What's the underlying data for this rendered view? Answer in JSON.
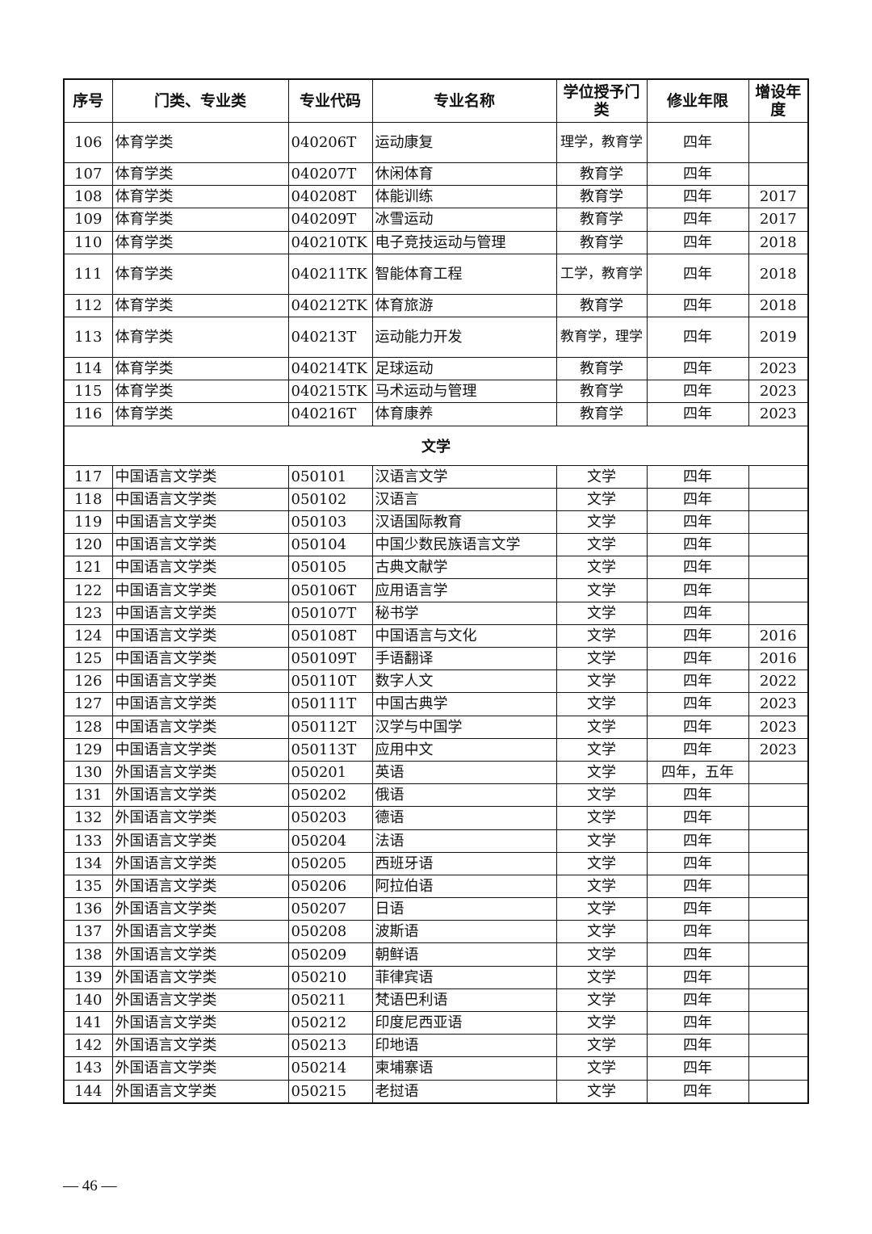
{
  "headers": [
    "序号",
    "门类、专业类",
    "专业代码",
    "专业名称",
    "学位授予门类",
    "修业年限",
    "增设年度"
  ],
  "rows_a": [
    [
      "106",
      "体育学类",
      "040206T",
      "运动康复",
      "理学，教育学",
      "四年",
      ""
    ],
    [
      "107",
      "体育学类",
      "040207T",
      "休闲体育",
      "教育学",
      "四年",
      ""
    ],
    [
      "108",
      "体育学类",
      "040208T",
      "体能训练",
      "教育学",
      "四年",
      "2017"
    ],
    [
      "109",
      "体育学类",
      "040209T",
      "冰雪运动",
      "教育学",
      "四年",
      "2017"
    ],
    [
      "110",
      "体育学类",
      "040210TK",
      "电子竞技运动与管理",
      "教育学",
      "四年",
      "2018"
    ],
    [
      "111",
      "体育学类",
      "040211TK",
      "智能体育工程",
      "工学，教育学",
      "四年",
      "2018"
    ],
    [
      "112",
      "体育学类",
      "040212TK",
      "体育旅游",
      "教育学",
      "四年",
      "2018"
    ],
    [
      "113",
      "体育学类",
      "040213T",
      "运动能力开发",
      "教育学，理学",
      "四年",
      "2019"
    ],
    [
      "114",
      "体育学类",
      "040214TK",
      "足球运动",
      "教育学",
      "四年",
      "2023"
    ],
    [
      "115",
      "体育学类",
      "040215TK",
      "马术运动与管理",
      "教育学",
      "四年",
      "2023"
    ],
    [
      "116",
      "体育学类",
      "040216T",
      "体育康养",
      "教育学",
      "四年",
      "2023"
    ]
  ],
  "section": "文学",
  "rows_b": [
    [
      "117",
      "中国语言文学类",
      "050101",
      "汉语言文学",
      "文学",
      "四年",
      ""
    ],
    [
      "118",
      "中国语言文学类",
      "050102",
      "汉语言",
      "文学",
      "四年",
      ""
    ],
    [
      "119",
      "中国语言文学类",
      "050103",
      "汉语国际教育",
      "文学",
      "四年",
      ""
    ],
    [
      "120",
      "中国语言文学类",
      "050104",
      "中国少数民族语言文学",
      "文学",
      "四年",
      ""
    ],
    [
      "121",
      "中国语言文学类",
      "050105",
      "古典文献学",
      "文学",
      "四年",
      ""
    ],
    [
      "122",
      "中国语言文学类",
      "050106T",
      "应用语言学",
      "文学",
      "四年",
      ""
    ],
    [
      "123",
      "中国语言文学类",
      "050107T",
      "秘书学",
      "文学",
      "四年",
      ""
    ],
    [
      "124",
      "中国语言文学类",
      "050108T",
      "中国语言与文化",
      "文学",
      "四年",
      "2016"
    ],
    [
      "125",
      "中国语言文学类",
      "050109T",
      "手语翻译",
      "文学",
      "四年",
      "2016"
    ],
    [
      "126",
      "中国语言文学类",
      "050110T",
      "数字人文",
      "文学",
      "四年",
      "2022"
    ],
    [
      "127",
      "中国语言文学类",
      "050111T",
      "中国古典学",
      "文学",
      "四年",
      "2023"
    ],
    [
      "128",
      "中国语言文学类",
      "050112T",
      "汉学与中国学",
      "文学",
      "四年",
      "2023"
    ],
    [
      "129",
      "中国语言文学类",
      "050113T",
      "应用中文",
      "文学",
      "四年",
      "2023"
    ],
    [
      "130",
      "外国语言文学类",
      "050201",
      "英语",
      "文学",
      "四年，五年",
      ""
    ],
    [
      "131",
      "外国语言文学类",
      "050202",
      "俄语",
      "文学",
      "四年",
      ""
    ],
    [
      "132",
      "外国语言文学类",
      "050203",
      "德语",
      "文学",
      "四年",
      ""
    ],
    [
      "133",
      "外国语言文学类",
      "050204",
      "法语",
      "文学",
      "四年",
      ""
    ],
    [
      "134",
      "外国语言文学类",
      "050205",
      "西班牙语",
      "文学",
      "四年",
      ""
    ],
    [
      "135",
      "外国语言文学类",
      "050206",
      "阿拉伯语",
      "文学",
      "四年",
      ""
    ],
    [
      "136",
      "外国语言文学类",
      "050207",
      "日语",
      "文学",
      "四年",
      ""
    ],
    [
      "137",
      "外国语言文学类",
      "050208",
      "波斯语",
      "文学",
      "四年",
      ""
    ],
    [
      "138",
      "外国语言文学类",
      "050209",
      "朝鲜语",
      "文学",
      "四年",
      ""
    ],
    [
      "139",
      "外国语言文学类",
      "050210",
      "菲律宾语",
      "文学",
      "四年",
      ""
    ],
    [
      "140",
      "外国语言文学类",
      "050211",
      "梵语巴利语",
      "文学",
      "四年",
      ""
    ],
    [
      "141",
      "外国语言文学类",
      "050212",
      "印度尼西亚语",
      "文学",
      "四年",
      ""
    ],
    [
      "142",
      "外国语言文学类",
      "050213",
      "印地语",
      "文学",
      "四年",
      ""
    ],
    [
      "143",
      "外国语言文学类",
      "050214",
      "柬埔寨语",
      "文学",
      "四年",
      ""
    ],
    [
      "144",
      "外国语言文学类",
      "050215",
      "老挝语",
      "文学",
      "四年",
      ""
    ]
  ],
  "page_number": "— 46 —"
}
